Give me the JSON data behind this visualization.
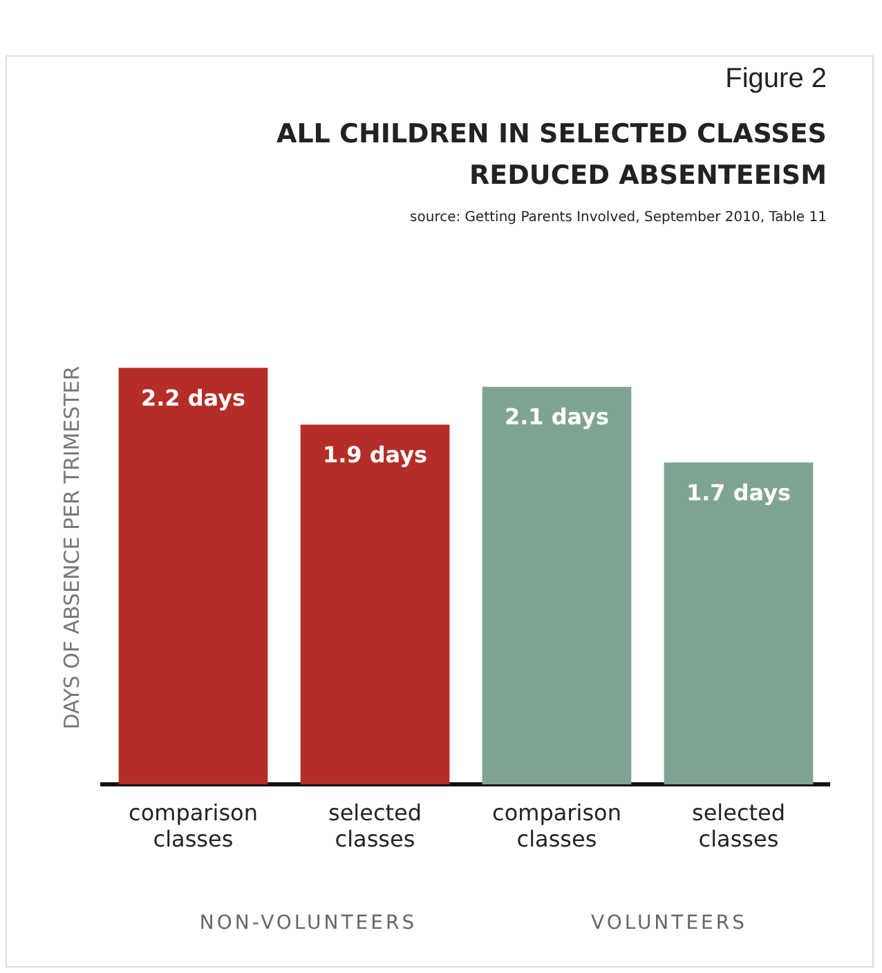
{
  "chart_data": {
    "type": "bar",
    "subtitle": "Figure 2",
    "title": "ALL CHILDREN IN SELECTED CLASSES REDUCED ABSENTEEISM",
    "ylabel": "DAYS OF ABSENCE PER TRIMESTER",
    "categories": [
      "comparison classes",
      "selected classes",
      "comparison classes",
      "selected classes"
    ],
    "values": [
      2.2,
      1.9,
      2.1,
      1.7
    ],
    "colors": [
      "#b52d27",
      "#b52d27",
      "#7fa592",
      "#7fa592"
    ],
    "value_labels": [
      "2.2 days",
      "1.9 days",
      "2.1 days",
      "1.7 days"
    ],
    "tick_labels": "x",
    "grid": false,
    "legend": false,
    "annotations": [
      "source: Getting Parents Involved, September 2010, Table 11",
      "NON-VOLUNTEERS",
      "VOLUNTEERS"
    ]
  }
}
